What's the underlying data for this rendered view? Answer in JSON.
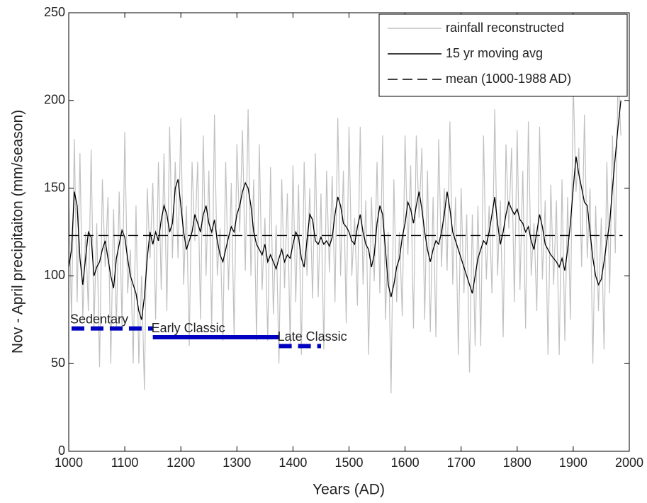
{
  "chart_data": {
    "type": "line",
    "xlabel": "Years (AD)",
    "ylabel": "Nov - April precipitaiton (mm/season)",
    "xlim": [
      1000,
      2000
    ],
    "xticks": [
      1000,
      1100,
      1200,
      1300,
      1400,
      1500,
      1600,
      1700,
      1800,
      1900,
      2000
    ],
    "ylim": [
      0,
      250
    ],
    "yticks": [
      0,
      50,
      100,
      150,
      200,
      250
    ],
    "legend": "upper right",
    "x": [
      1000,
      1005,
      1010,
      1015,
      1020,
      1025,
      1030,
      1035,
      1040,
      1045,
      1050,
      1055,
      1060,
      1065,
      1070,
      1075,
      1080,
      1085,
      1090,
      1095,
      1100,
      1105,
      1110,
      1115,
      1120,
      1125,
      1130,
      1135,
      1140,
      1145,
      1150,
      1155,
      1160,
      1165,
      1170,
      1175,
      1180,
      1185,
      1190,
      1195,
      1200,
      1205,
      1210,
      1215,
      1220,
      1225,
      1230,
      1235,
      1240,
      1245,
      1250,
      1255,
      1260,
      1265,
      1270,
      1275,
      1280,
      1285,
      1290,
      1295,
      1300,
      1305,
      1310,
      1315,
      1320,
      1325,
      1330,
      1335,
      1340,
      1345,
      1350,
      1355,
      1360,
      1365,
      1370,
      1375,
      1380,
      1385,
      1390,
      1395,
      1400,
      1405,
      1410,
      1415,
      1420,
      1425,
      1430,
      1435,
      1440,
      1445,
      1450,
      1455,
      1460,
      1465,
      1470,
      1475,
      1480,
      1485,
      1490,
      1495,
      1500,
      1505,
      1510,
      1515,
      1520,
      1525,
      1530,
      1535,
      1540,
      1545,
      1550,
      1555,
      1560,
      1565,
      1570,
      1575,
      1580,
      1585,
      1590,
      1595,
      1600,
      1605,
      1610,
      1615,
      1620,
      1625,
      1630,
      1635,
      1640,
      1645,
      1650,
      1655,
      1660,
      1665,
      1670,
      1675,
      1680,
      1685,
      1690,
      1695,
      1700,
      1705,
      1710,
      1715,
      1720,
      1725,
      1730,
      1735,
      1740,
      1745,
      1750,
      1755,
      1760,
      1765,
      1770,
      1775,
      1780,
      1785,
      1790,
      1795,
      1800,
      1805,
      1810,
      1815,
      1820,
      1825,
      1830,
      1835,
      1840,
      1845,
      1850,
      1855,
      1860,
      1865,
      1870,
      1875,
      1880,
      1885,
      1890,
      1895,
      1900,
      1905,
      1910,
      1915,
      1920,
      1925,
      1930,
      1935,
      1940,
      1945,
      1950,
      1955,
      1960,
      1965,
      1970,
      1975,
      1980,
      1985
    ],
    "series": [
      {
        "name": "rainfall reconstructed",
        "color": "#c0c0c0",
        "style": "solid",
        "values": [
          150,
          75,
          178,
          85,
          170,
          75,
          125,
          80,
          172,
          70,
          130,
          48,
          155,
          105,
          145,
          50,
          138,
          70,
          148,
          71,
          182,
          90,
          115,
          50,
          140,
          50,
          100,
          35,
          150,
          110,
          153,
          75,
          165,
          92,
          170,
          80,
          185,
          110,
          165,
          110,
          190,
          95,
          140,
          60,
          165,
          120,
          165,
          75,
          180,
          100,
          160,
          70,
          192,
          100,
          127,
          63,
          165,
          92,
          153,
          65,
          175,
          125,
          183,
          103,
          195,
          100,
          155,
          63,
          175,
          92,
          133,
          63,
          162,
          78,
          129,
          50,
          155,
          93,
          147,
          60,
          163,
          85,
          152,
          55,
          165,
          100,
          150,
          87,
          170,
          88,
          147,
          58,
          160,
          102,
          157,
          85,
          190,
          100,
          160,
          73,
          185,
          100,
          133,
          83,
          185,
          95,
          143,
          55,
          145,
          97,
          165,
          90,
          180,
          75,
          125,
          33,
          155,
          85,
          125,
          77,
          180,
          112,
          163,
          70,
          180,
          133,
          173,
          75,
          160,
          68,
          145,
          65,
          178,
          105,
          150,
          103,
          188,
          95,
          145,
          55,
          150,
          90,
          135,
          45,
          135,
          60,
          140,
          60,
          180,
          98,
          140,
          90,
          195,
          100,
          143,
          65,
          175,
          127,
          173,
          85,
          183,
          92,
          160,
          70,
          188,
          100,
          130,
          80,
          185,
          98,
          143,
          55,
          152,
          95,
          143,
          55,
          155,
          63,
          145,
          75,
          210,
          148,
          173,
          105,
          192,
          110,
          150,
          50,
          140,
          80,
          133,
          58,
          165,
          90,
          180,
          113,
          215,
          180
        ]
      },
      {
        "name": "15 yr moving avg",
        "color": "#000000",
        "style": "solid",
        "values": [
          105,
          115,
          148,
          140,
          110,
          95,
          110,
          125,
          122,
          100,
          105,
          108,
          115,
          120,
          110,
          100,
          93,
          110,
          118,
          126,
          122,
          110,
          100,
          95,
          90,
          80,
          75,
          88,
          110,
          125,
          118,
          125,
          120,
          132,
          140,
          135,
          125,
          130,
          150,
          155,
          140,
          125,
          115,
          120,
          125,
          135,
          130,
          125,
          135,
          140,
          130,
          125,
          132,
          120,
          112,
          108,
          115,
          122,
          128,
          125,
          135,
          140,
          148,
          153,
          150,
          140,
          125,
          118,
          115,
          112,
          118,
          108,
          112,
          108,
          104,
          110,
          115,
          108,
          112,
          110,
          118,
          125,
          122,
          110,
          105,
          120,
          135,
          132,
          120,
          118,
          122,
          118,
          120,
          117,
          122,
          135,
          145,
          140,
          130,
          128,
          125,
          120,
          118,
          128,
          135,
          125,
          118,
          115,
          105,
          112,
          130,
          140,
          135,
          115,
          95,
          88,
          95,
          105,
          110,
          122,
          130,
          142,
          138,
          130,
          140,
          148,
          138,
          125,
          115,
          108,
          115,
          120,
          118,
          125,
          135,
          148,
          138,
          125,
          120,
          115,
          110,
          105,
          100,
          95,
          90,
          100,
          110,
          115,
          120,
          118,
          125,
          135,
          145,
          130,
          118,
          125,
          135,
          142,
          138,
          135,
          138,
          132,
          130,
          125,
          128,
          120,
          115,
          125,
          135,
          128,
          118,
          115,
          112,
          110,
          108,
          105,
          110,
          103,
          115,
          130,
          150,
          168,
          158,
          150,
          142,
          140,
          125,
          110,
          100,
          95,
          98,
          108,
          120,
          130,
          150,
          168,
          185,
          200
        ]
      },
      {
        "name": "mean (1000-1988 AD)",
        "color": "#000000",
        "style": "dashed",
        "x": [
          1000,
          1988
        ],
        "values": [
          123,
          123
        ]
      }
    ],
    "periods": {
      "color": "#0000c0",
      "items": [
        {
          "text": "Sedentary",
          "start": 1005,
          "end": 1150,
          "value": 70,
          "style": "dashed"
        },
        {
          "text": "Early Classic",
          "start": 1150,
          "end": 1375,
          "value": 65,
          "style": "solid"
        },
        {
          "text": "Late Classic",
          "start": 1375,
          "end": 1450,
          "value": 60,
          "style": "dashed"
        }
      ]
    }
  }
}
